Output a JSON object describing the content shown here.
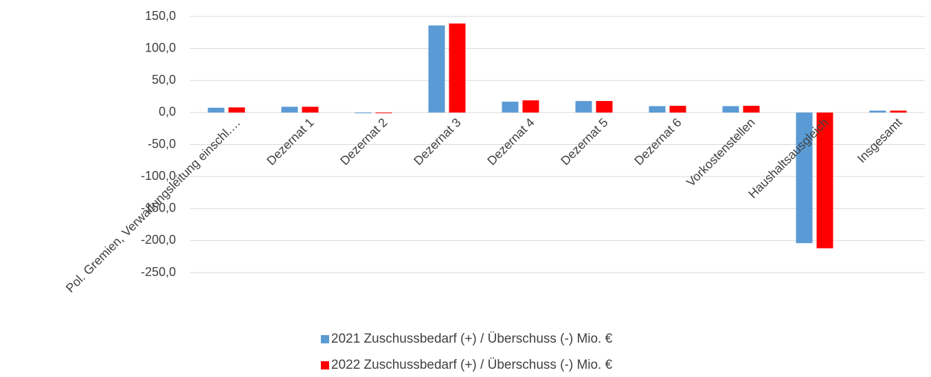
{
  "chart_data": {
    "type": "bar",
    "categories": [
      "Pol. Gremien, Verwaltungsleitung einschl.…",
      "Dezernat 1",
      "Dezernat 2",
      "Dezernat 3",
      "Dezernat 4",
      "Dezernat 5",
      "Dezernat 6",
      "Vorkostenstellen",
      "Haushaltsausgleich",
      "Insgesamt"
    ],
    "series": [
      {
        "name": "2021 Zuschussbedarf (+) / Überschuss (-) Mio. €",
        "color": "#5b9bd5",
        "values": [
          7.5,
          9,
          -1,
          136,
          17,
          18,
          10,
          10,
          -204,
          3
        ]
      },
      {
        "name": "2022 Zuschussbedarf (+) / Überschuss (-) Mio. €",
        "color": "#ff0000",
        "values": [
          8,
          9,
          -1,
          139,
          19,
          18,
          10.5,
          10.5,
          -212,
          3
        ]
      }
    ],
    "ylim": [
      -250,
      150
    ],
    "yticks": [
      {
        "value": -250,
        "label": "-250,0"
      },
      {
        "value": -200,
        "label": "-200,0"
      },
      {
        "value": -150,
        "label": "-150,0"
      },
      {
        "value": -100,
        "label": "-100,0"
      },
      {
        "value": -50,
        "label": "-50,0"
      },
      {
        "value": 0,
        "label": "0,0"
      },
      {
        "value": 50,
        "label": "50,0"
      },
      {
        "value": 100,
        "label": "100,0"
      },
      {
        "value": 150,
        "label": "150,0"
      }
    ],
    "grid": true,
    "legend": "bottom"
  }
}
